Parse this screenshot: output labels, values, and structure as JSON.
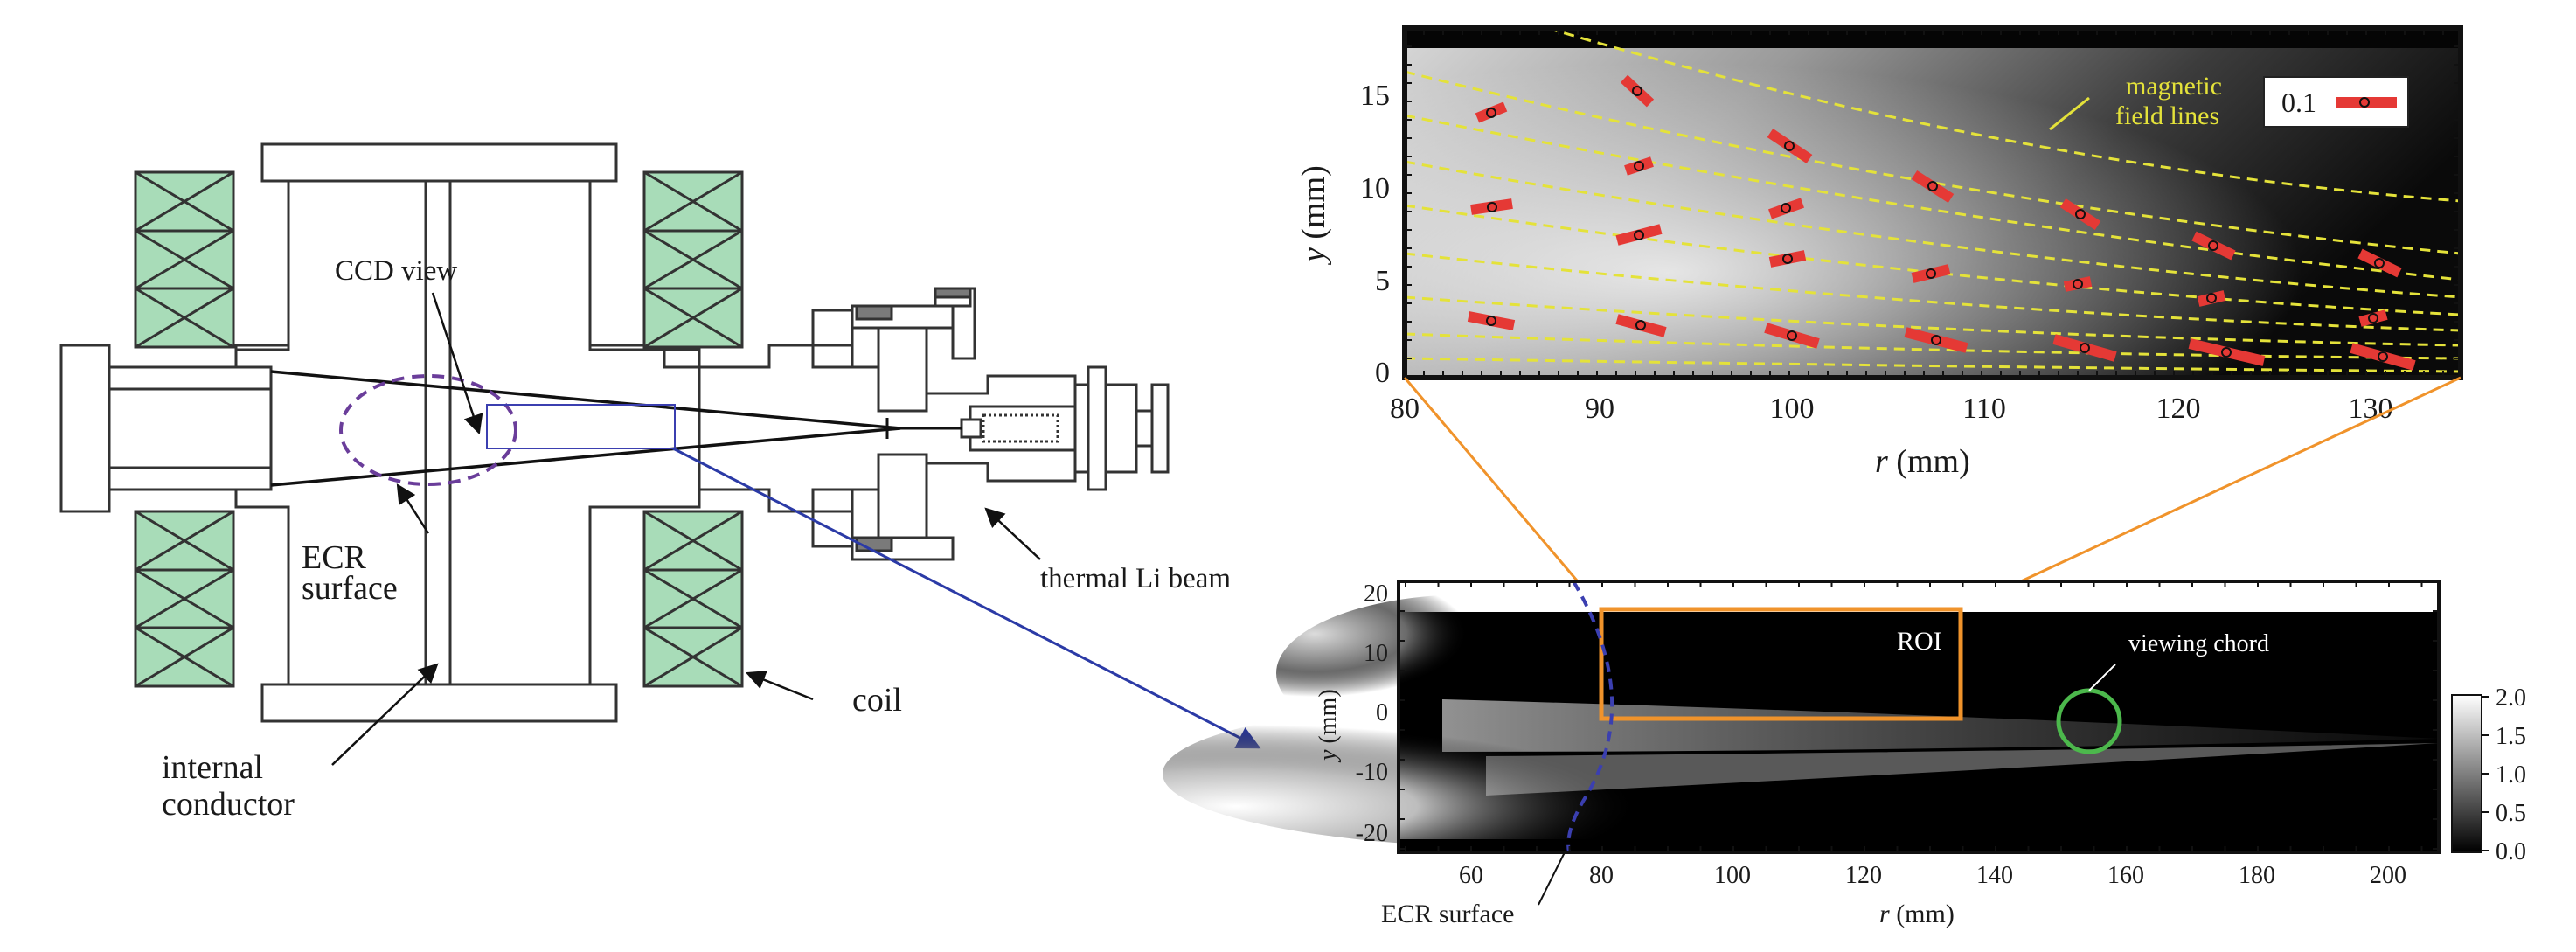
{
  "schematic": {
    "labels": {
      "ccd_view": "CCD view",
      "ecr_surface_line1": "ECR",
      "ecr_surface_line2": "surface",
      "internal_conductor_line1": "internal",
      "internal_conductor_line2": "conductor",
      "coil": "coil",
      "thermal_li_beam": "thermal Li beam"
    },
    "colors": {
      "coil_fill": "#a8dcb8",
      "ecr_dashed": "#6a3d9a",
      "viewing_box": "#3b3fb0",
      "arrow": "#2b3aa6"
    }
  },
  "top_panel": {
    "x_label_italic": "r",
    "x_label_unit": " (mm)",
    "y_label_italic": "y",
    "y_label_unit": " (mm)",
    "x_ticks": [
      "80",
      "90",
      "100",
      "110",
      "120",
      "130"
    ],
    "y_ticks": [
      "0",
      "5",
      "10",
      "15"
    ],
    "annotation_line1": "magnetic",
    "annotation_line2": "field lines",
    "legend_label": "0.1",
    "colors": {
      "field_lines": "#e4e23a",
      "vectors": "#e53935"
    }
  },
  "bottom_panel": {
    "x_label_italic": "r",
    "x_label_unit": " (mm)",
    "y_label_italic": "y",
    "y_label_unit": " (mm)",
    "x_ticks": [
      "60",
      "80",
      "100",
      "120",
      "140",
      "160",
      "180",
      "200"
    ],
    "y_ticks": [
      "20",
      "10",
      "0",
      "-10",
      "-20"
    ],
    "roi_label": "ROI",
    "viewing_chord_label": "viewing chord",
    "ecr_surface_label": "ECR surface",
    "colorbar_ticks": [
      "2.0",
      "1.5",
      "1.0",
      "0.5",
      "0.0"
    ],
    "colors": {
      "roi": "#f0932b",
      "chord": "#4cb84c",
      "ecr": "#3b3fb0"
    }
  }
}
